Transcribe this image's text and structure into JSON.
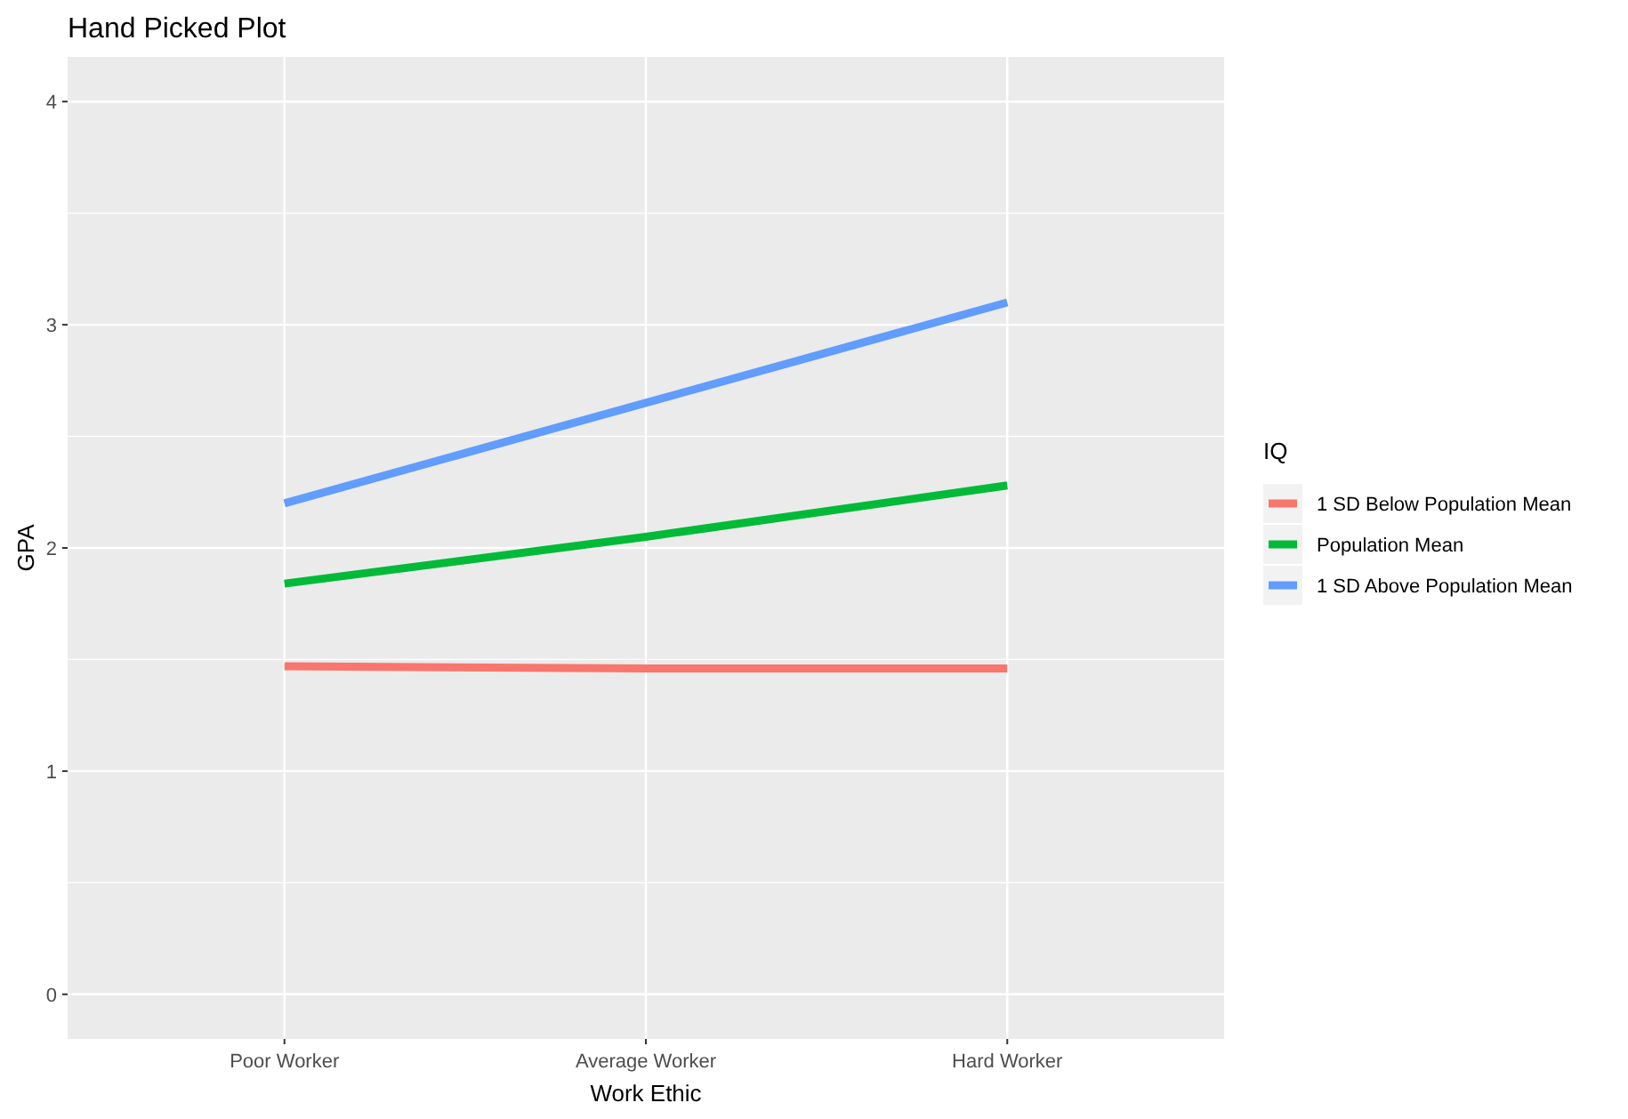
{
  "chart_data": {
    "type": "line",
    "title": "Hand Picked Plot",
    "xlabel": "Work Ethic",
    "ylabel": "GPA",
    "legend_title": "IQ",
    "categories": [
      "Poor Worker",
      "Average Worker",
      "Hard Worker"
    ],
    "series": [
      {
        "name": "1 SD Below Population Mean",
        "color": "#f8766d",
        "values": [
          1.47,
          1.46,
          1.46
        ]
      },
      {
        "name": "Population Mean",
        "color": "#00ba38",
        "values": [
          1.84,
          2.05,
          2.28
        ]
      },
      {
        "name": "1 SD Above Population Mean",
        "color": "#619cff",
        "values": [
          2.2,
          2.65,
          3.1
        ]
      }
    ],
    "ylim": [
      -0.2,
      4.2
    ],
    "yticks": [
      0,
      1,
      2,
      3,
      4
    ],
    "grid": true,
    "legend": "right",
    "marker": "none",
    "line_style": "solid"
  }
}
